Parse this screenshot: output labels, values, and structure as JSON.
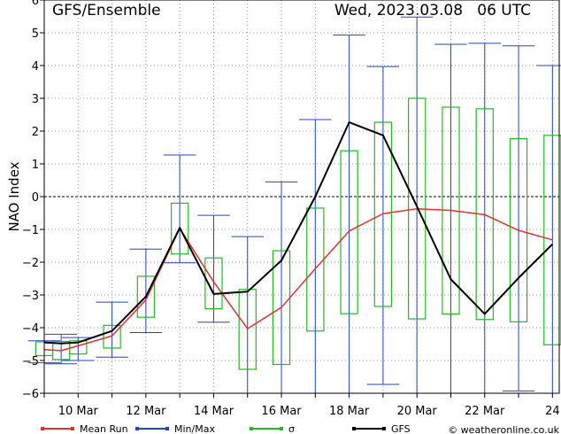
{
  "header": {
    "title": "GFS/Ensemble",
    "date": "Wed, 2023.03.08   06 UTC"
  },
  "chart_data": {
    "type": "line",
    "ylabel": "NAO Index",
    "ylim": [
      -6,
      6
    ],
    "yticks": [
      -6,
      -5,
      -4,
      -3,
      -2,
      -1,
      0,
      1,
      2,
      3,
      4,
      5,
      6
    ],
    "x_day_range": [
      9,
      24.2
    ],
    "xtick_labels": [
      {
        "label": "10  Mar",
        "day": 10
      },
      {
        "label": "12  Mar",
        "day": 12
      },
      {
        "label": "14  Mar",
        "day": 14
      },
      {
        "label": "16  Mar",
        "day": 16
      },
      {
        "label": "18  Mar",
        "day": 18
      },
      {
        "label": "20  Mar",
        "day": 20
      },
      {
        "label": "22  Mar",
        "day": 22
      },
      {
        "label": "24",
        "day": 24
      }
    ],
    "grid": true,
    "legend_position": "bottom",
    "legend": [
      {
        "label": "Mean Run",
        "color": "#e03030"
      },
      {
        "label": "Min/Max",
        "color": "#2244cc"
      },
      {
        "label": "σ",
        "color": "#22bb22"
      },
      {
        "label": "GFS",
        "color": "#000000"
      }
    ],
    "credit": "© weatheronline.co.uk",
    "steps": [
      {
        "day": 9.0,
        "mean": -4.67,
        "min": -5.07,
        "max": -4.4,
        "sd_low": -4.85,
        "sd_high": -4.43,
        "gfs": -4.45
      },
      {
        "day": 9.5,
        "mean": -4.7,
        "min": -5.1,
        "max": -4.2,
        "sd_low": -4.97,
        "sd_high": -4.42,
        "gfs": -4.48
      },
      {
        "day": 10.0,
        "mean": -4.55,
        "min": -5.0,
        "max": -4.3,
        "sd_low": -4.8,
        "sd_high": -4.4,
        "gfs": -4.45
      },
      {
        "day": 11.0,
        "mean": -4.25,
        "min": -4.9,
        "max": -3.22,
        "sd_low": -4.62,
        "sd_high": -3.93,
        "gfs": -4.1
      },
      {
        "day": 12.0,
        "mean": -3.15,
        "min": -4.15,
        "max": -1.6,
        "sd_low": -3.68,
        "sd_high": -2.43,
        "gfs": -3.05
      },
      {
        "day": 13.0,
        "mean": -0.97,
        "min": -2.02,
        "max": 1.27,
        "sd_low": -1.75,
        "sd_high": -0.2,
        "gfs": -0.95
      },
      {
        "day": 14.0,
        "mean": -2.6,
        "min": -3.83,
        "max": -0.57,
        "sd_low": -3.42,
        "sd_high": -1.87,
        "gfs": -2.97
      },
      {
        "day": 15.0,
        "mean": -4.03,
        "min": -6.0,
        "max": -1.22,
        "sd_low": -5.27,
        "sd_high": -2.83,
        "gfs": -2.9
      },
      {
        "day": 16.0,
        "mean": -3.38,
        "min": -6.0,
        "max": 0.45,
        "sd_low": -5.12,
        "sd_high": -1.65,
        "gfs": -1.95
      },
      {
        "day": 17.0,
        "mean": -2.2,
        "min": -6.0,
        "max": 2.35,
        "sd_low": -4.1,
        "sd_high": -0.35,
        "gfs": 0.0
      },
      {
        "day": 18.0,
        "mean": -1.05,
        "min": -6.0,
        "max": 4.93,
        "sd_low": -3.57,
        "sd_high": 1.4,
        "gfs": 2.27
      },
      {
        "day": 19.0,
        "mean": -0.52,
        "min": -5.73,
        "max": 3.97,
        "sd_low": -3.35,
        "sd_high": 2.27,
        "gfs": 1.87
      },
      {
        "day": 20.0,
        "mean": -0.37,
        "min": -6.0,
        "max": 5.48,
        "sd_low": -3.73,
        "sd_high": 3.0,
        "gfs": -0.3
      },
      {
        "day": 21.0,
        "mean": -0.42,
        "min": -6.0,
        "max": 4.65,
        "sd_low": -3.58,
        "sd_high": 2.73,
        "gfs": -2.52
      },
      {
        "day": 22.0,
        "mean": -0.55,
        "min": -6.0,
        "max": 4.68,
        "sd_low": -3.75,
        "sd_high": 2.68,
        "gfs": -3.58
      },
      {
        "day": 23.0,
        "mean": -1.03,
        "min": -5.93,
        "max": 4.6,
        "sd_low": -3.82,
        "sd_high": 1.77,
        "gfs": -2.48
      },
      {
        "day": 24.0,
        "mean": -1.32,
        "min": -6.0,
        "max": 4.0,
        "sd_low": -4.52,
        "sd_high": 1.87,
        "gfs": -1.45
      }
    ]
  }
}
